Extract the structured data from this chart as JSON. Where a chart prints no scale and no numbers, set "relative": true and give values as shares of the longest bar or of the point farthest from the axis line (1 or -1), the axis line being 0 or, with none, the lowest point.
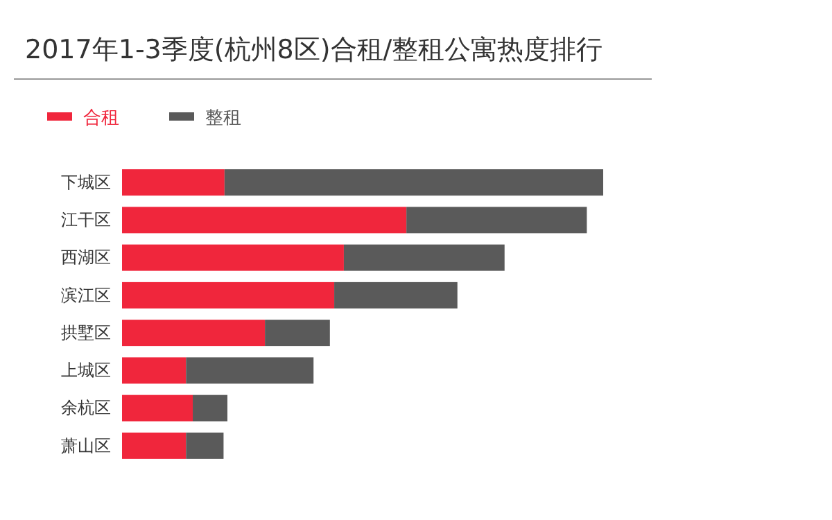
{
  "chart_data": {
    "type": "bar",
    "title": "2017年1-3季度(杭州8区)合租/整租公寓热度排行",
    "orientation": "horizontal",
    "stacked": true,
    "relative": true,
    "legend": "top left",
    "categories": [
      "下城区",
      "江干区",
      "西湖区",
      "滨江区",
      "拱墅区",
      "上城区",
      "余杭区",
      "萧山区"
    ],
    "series": [
      {
        "name": "合租",
        "color": "#f0263c",
        "values": [
          0.213,
          0.591,
          0.461,
          0.441,
          0.297,
          0.133,
          0.147,
          0.133
        ]
      },
      {
        "name": "整租",
        "color": "#5a5a5a",
        "values": [
          0.787,
          0.375,
          0.334,
          0.256,
          0.135,
          0.265,
          0.072,
          0.078
        ]
      }
    ]
  }
}
